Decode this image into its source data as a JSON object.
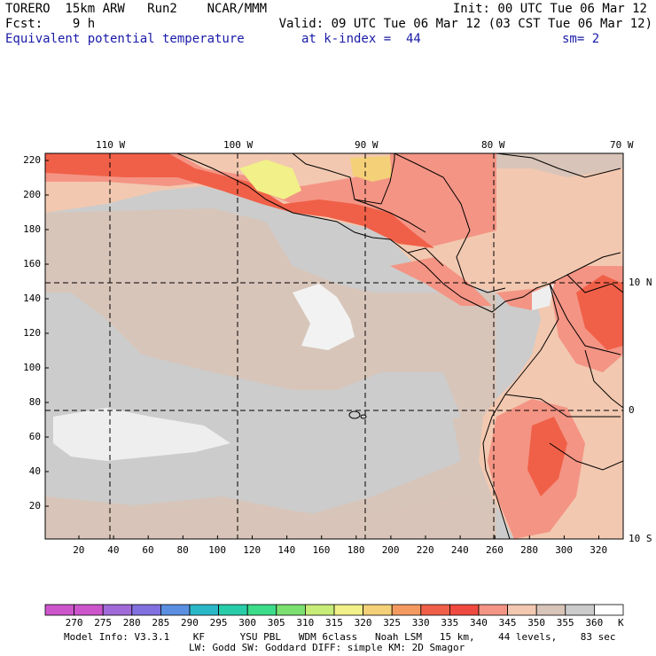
{
  "header": {
    "line1_left": "TORERO  15km ARW   Run2    NCAR/MMM",
    "line1_right": "Init: 00 UTC Tue 06 Mar 12",
    "line2_left": "Fcst:    9 h",
    "line2_right": "Valid: 09 UTC Tue 06 Mar 12 (03 CST Tue 06 Mar 12)",
    "field": "Equivalent potential temperature",
    "level": "at k-index =  44",
    "smooth": "sm= 2"
  },
  "axes": {
    "top_lon_labels": [
      "110 W",
      "100 W",
      "90 W",
      "80 W",
      "70 W"
    ],
    "right_lat_labels": [
      "10 N",
      "0",
      "10 S"
    ],
    "y_grid_labels": [
      "220",
      "200",
      "180",
      "160",
      "140",
      "120",
      "100",
      "80",
      "60",
      "40",
      "20"
    ],
    "x_grid_labels": [
      "20",
      "40",
      "60",
      "80",
      "100",
      "120",
      "140",
      "160",
      "180",
      "200",
      "220",
      "240",
      "260",
      "280",
      "300",
      "320"
    ]
  },
  "colorbar": {
    "unit": "K",
    "labels": [
      "270",
      "275",
      "280",
      "285",
      "290",
      "295",
      "300",
      "305",
      "310",
      "315",
      "320",
      "325",
      "330",
      "335",
      "340",
      "345",
      "350",
      "355",
      "360"
    ],
    "colors": [
      "#cc55cc",
      "#a06ad8",
      "#8070e0",
      "#5a8ee0",
      "#2ab8c8",
      "#28cca8",
      "#3cdc8a",
      "#7ce070",
      "#c8ec78",
      "#f2f088",
      "#f4d078",
      "#f49a60",
      "#f06048",
      "#f04a40",
      "#f49484",
      "#f2c8b0",
      "#d8c4b8",
      "#cccccc",
      "#ffffff"
    ]
  },
  "footer": {
    "line1": "Model Info: V3.3.1    KF      YSU PBL   WDM 6class   Noah LSM   15 km,    44 levels,    83 sec",
    "line2": "LW: Godd SW: Goddard DIFF: simple KM: 2D Smagor"
  }
}
